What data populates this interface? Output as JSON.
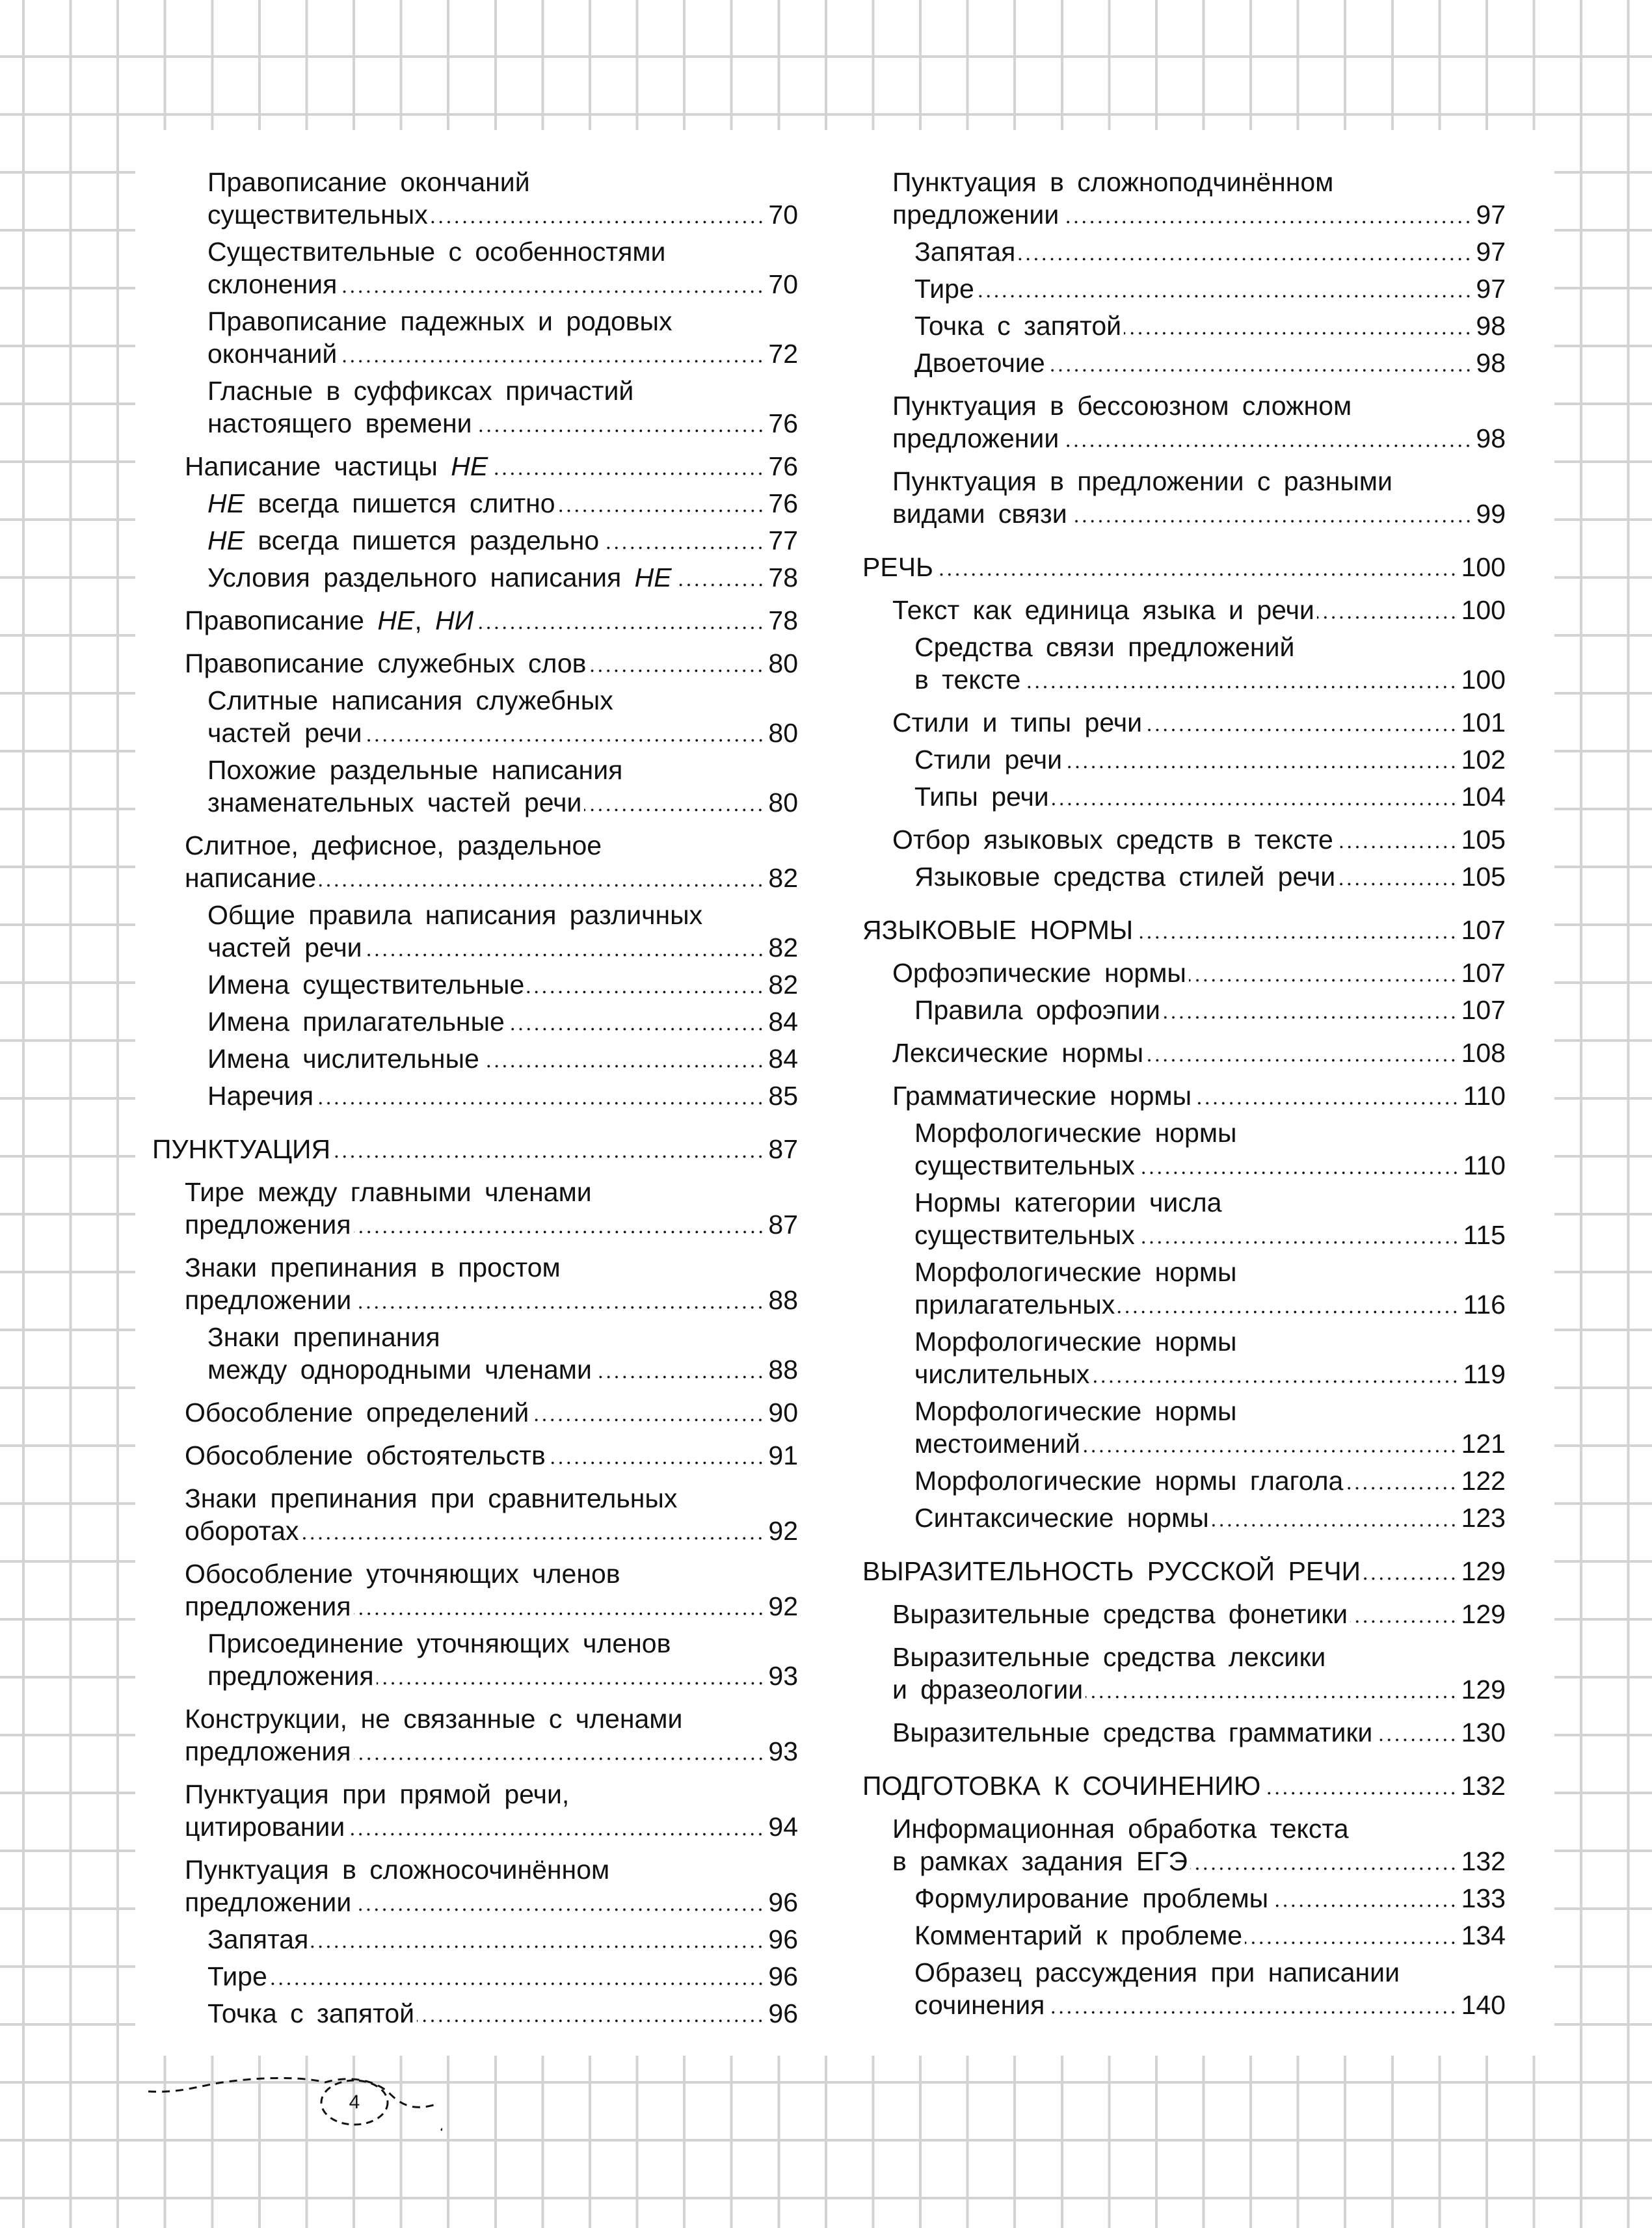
{
  "page_number": "4",
  "italic_words": [
    "НЕ",
    "НИ"
  ],
  "left_column": [
    {
      "level": 3,
      "lines": [
        "Правописание окончаний",
        "существительных"
      ],
      "page": "70"
    },
    {
      "level": 3,
      "lines": [
        "Существительные с особенностями",
        "склонения"
      ],
      "page": "70"
    },
    {
      "level": 3,
      "lines": [
        "Правописание падежных и родовых",
        "окончаний"
      ],
      "page": "72"
    },
    {
      "level": 3,
      "lines": [
        "Гласные в суффиксах причастий",
        "настоящего времени"
      ],
      "page": "76"
    },
    {
      "level": 2,
      "lines": [
        "Написание частицы НЕ"
      ],
      "page": "76"
    },
    {
      "level": 3,
      "lines": [
        "НЕ всегда пишется слитно"
      ],
      "page": "76"
    },
    {
      "level": 3,
      "lines": [
        "НЕ всегда пишется раздельно"
      ],
      "page": "77"
    },
    {
      "level": 3,
      "lines": [
        "Условия раздельного написания НЕ"
      ],
      "page": "78"
    },
    {
      "level": 2,
      "lines": [
        "Правописание НЕ, НИ"
      ],
      "page": "78"
    },
    {
      "level": 2,
      "lines": [
        "Правописание служебных слов"
      ],
      "page": "80"
    },
    {
      "level": 3,
      "lines": [
        "Слитные написания служебных",
        "частей речи"
      ],
      "page": "80"
    },
    {
      "level": 3,
      "lines": [
        "Похожие раздельные написания",
        "знаменательных частей речи"
      ],
      "page": "80"
    },
    {
      "level": 2,
      "lines": [
        "Слитное, дефисное, раздельное",
        "написание"
      ],
      "page": "82"
    },
    {
      "level": 3,
      "lines": [
        "Общие правила написания различных",
        "частей речи"
      ],
      "page": "82"
    },
    {
      "level": 3,
      "lines": [
        "Имена существительные"
      ],
      "page": "82"
    },
    {
      "level": 3,
      "lines": [
        "Имена прилагательные"
      ],
      "page": "84"
    },
    {
      "level": 3,
      "lines": [
        "Имена числительные"
      ],
      "page": "84"
    },
    {
      "level": 3,
      "lines": [
        "Наречия"
      ],
      "page": "85"
    },
    {
      "level": 1,
      "lines": [
        "ПУНКТУАЦИЯ"
      ],
      "page": "87"
    },
    {
      "level": 2,
      "lines": [
        "Тире между главными членами",
        "предложения"
      ],
      "page": "87"
    },
    {
      "level": 2,
      "lines": [
        "Знаки препинания в простом",
        "предложении"
      ],
      "page": "88"
    },
    {
      "level": 3,
      "lines": [
        "Знаки препинания",
        "между однородными членами"
      ],
      "page": "88"
    },
    {
      "level": 2,
      "lines": [
        "Обособление определений"
      ],
      "page": "90"
    },
    {
      "level": 2,
      "lines": [
        "Обособление обстоятельств"
      ],
      "page": "91"
    },
    {
      "level": 2,
      "lines": [
        "Знаки препинания при сравнительных",
        "оборотах"
      ],
      "page": "92"
    },
    {
      "level": 2,
      "lines": [
        "Обособление уточняющих членов",
        "предложения"
      ],
      "page": "92"
    },
    {
      "level": 3,
      "lines": [
        "Присоединение уточняющих членов",
        "предложения"
      ],
      "page": "93"
    },
    {
      "level": 2,
      "lines": [
        "Конструкции, не связанные с членами",
        "предложения"
      ],
      "page": "93"
    },
    {
      "level": 2,
      "lines": [
        "Пунктуация при прямой речи,",
        "цитировании"
      ],
      "page": "94"
    },
    {
      "level": 2,
      "lines": [
        "Пунктуация в сложносочинённом",
        "предложении"
      ],
      "page": "96"
    },
    {
      "level": 3,
      "lines": [
        "Запятая"
      ],
      "page": "96"
    },
    {
      "level": 3,
      "lines": [
        "Тире"
      ],
      "page": "96"
    },
    {
      "level": 3,
      "lines": [
        "Точка с запятой"
      ],
      "page": "96"
    }
  ],
  "right_column": [
    {
      "level": 2,
      "lines": [
        "Пунктуация в сложноподчинённом",
        "предложении"
      ],
      "page": "97"
    },
    {
      "level": 3,
      "lines": [
        "Запятая"
      ],
      "page": "97"
    },
    {
      "level": 3,
      "lines": [
        "Тире"
      ],
      "page": "97"
    },
    {
      "level": 3,
      "lines": [
        "Точка с запятой"
      ],
      "page": "98"
    },
    {
      "level": 3,
      "lines": [
        "Двоеточие"
      ],
      "page": "98"
    },
    {
      "level": 2,
      "lines": [
        "Пунктуация в бессоюзном сложном",
        "предложении"
      ],
      "page": "98"
    },
    {
      "level": 2,
      "lines": [
        "Пунктуация в предложении с разными",
        "видами связи"
      ],
      "page": "99"
    },
    {
      "level": 1,
      "lines": [
        "РЕЧЬ"
      ],
      "page": "100"
    },
    {
      "level": 2,
      "lines": [
        "Текст как единица языка и речи"
      ],
      "page": "100"
    },
    {
      "level": 3,
      "lines": [
        "Средства связи предложений",
        "в тексте"
      ],
      "page": "100"
    },
    {
      "level": 2,
      "lines": [
        "Стили и типы речи"
      ],
      "page": "101"
    },
    {
      "level": 3,
      "lines": [
        "Стили речи"
      ],
      "page": "102"
    },
    {
      "level": 3,
      "lines": [
        "Типы речи"
      ],
      "page": "104"
    },
    {
      "level": 2,
      "lines": [
        "Отбор языковых средств в тексте"
      ],
      "page": "105"
    },
    {
      "level": 3,
      "lines": [
        "Языковые средства стилей речи"
      ],
      "page": "105"
    },
    {
      "level": 1,
      "lines": [
        "ЯЗЫКОВЫЕ НОРМЫ"
      ],
      "page": "107"
    },
    {
      "level": 2,
      "lines": [
        "Орфоэпические нормы"
      ],
      "page": "107"
    },
    {
      "level": 3,
      "lines": [
        "Правила орфоэпии"
      ],
      "page": "107"
    },
    {
      "level": 2,
      "lines": [
        "Лексические нормы"
      ],
      "page": "108"
    },
    {
      "level": 2,
      "lines": [
        "Грамматические нормы"
      ],
      "page": "110"
    },
    {
      "level": 3,
      "lines": [
        "Морфологические нормы",
        "существительных"
      ],
      "page": "110"
    },
    {
      "level": 3,
      "lines": [
        "Нормы категории числа",
        "существительных"
      ],
      "page": "115"
    },
    {
      "level": 3,
      "lines": [
        "Морфологические нормы",
        "прилагательных"
      ],
      "page": "116"
    },
    {
      "level": 3,
      "lines": [
        "Морфологические нормы",
        "числительных"
      ],
      "page": "119"
    },
    {
      "level": 3,
      "lines": [
        "Морфологические нормы",
        "местоимений"
      ],
      "page": "121"
    },
    {
      "level": 3,
      "lines": [
        "Морфологические нормы глагола"
      ],
      "page": "122"
    },
    {
      "level": 3,
      "lines": [
        "Синтаксические нормы"
      ],
      "page": "123"
    },
    {
      "level": 1,
      "lines": [
        "ВЫРАЗИТЕЛЬНОСТЬ РУССКОЙ РЕЧИ"
      ],
      "page": "129"
    },
    {
      "level": 2,
      "lines": [
        "Выразительные средства фонетики"
      ],
      "page": "129"
    },
    {
      "level": 2,
      "lines": [
        "Выразительные средства лексики",
        "и фразеологии"
      ],
      "page": "129"
    },
    {
      "level": 2,
      "lines": [
        "Выразительные средства грамматики"
      ],
      "page": "130"
    },
    {
      "level": 1,
      "lines": [
        "ПОДГОТОВКА К СОЧИНЕНИЮ"
      ],
      "page": "132"
    },
    {
      "level": 2,
      "lines": [
        "Информационная обработка текста",
        "в рамках задания ЕГЭ"
      ],
      "page": "132"
    },
    {
      "level": 3,
      "lines": [
        "Формулирование проблемы"
      ],
      "page": "133"
    },
    {
      "level": 3,
      "lines": [
        "Комментарий к проблеме"
      ],
      "page": "134"
    },
    {
      "level": 3,
      "lines": [
        "Образец рассуждения при написании",
        "сочинения"
      ],
      "page": "140"
    }
  ]
}
